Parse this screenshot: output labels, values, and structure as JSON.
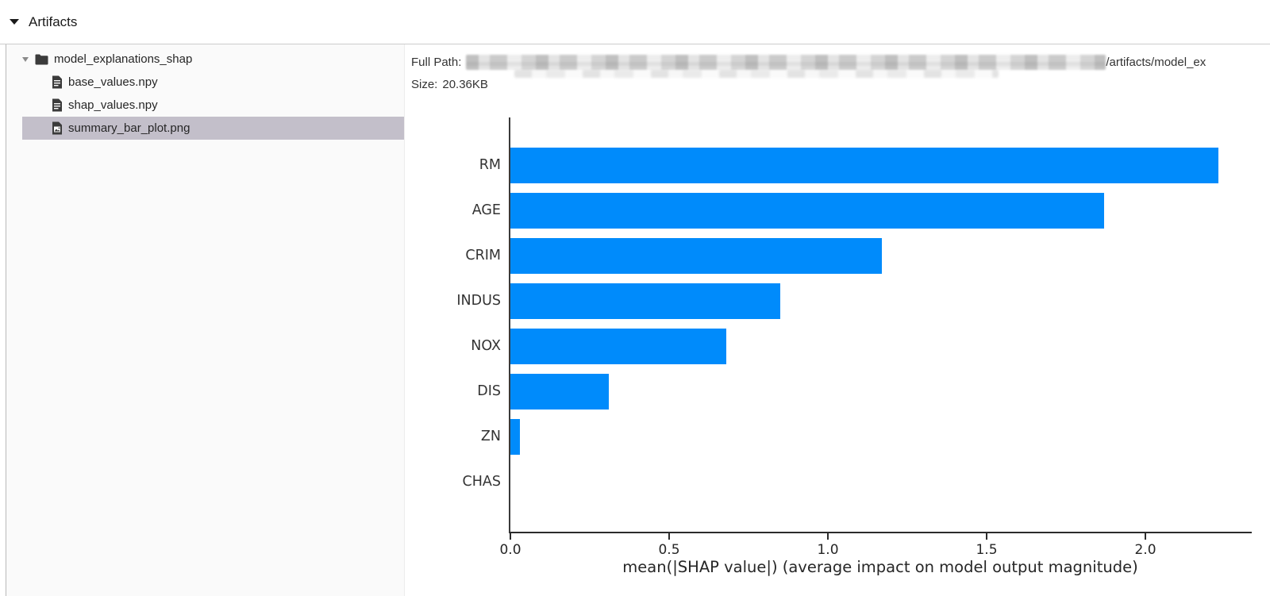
{
  "header": {
    "title": "Artifacts"
  },
  "file_tree": {
    "folder": {
      "name": "model_explanations_shap",
      "icon": "folder-icon",
      "expanded": true
    },
    "files": [
      {
        "name": "base_values.npy",
        "icon": "file-text-icon",
        "selected": false
      },
      {
        "name": "shap_values.npy",
        "icon": "file-text-icon",
        "selected": false
      },
      {
        "name": "summary_bar_plot.png",
        "icon": "file-image-icon",
        "selected": true
      }
    ],
    "selected_bg": "#c3bfca"
  },
  "details": {
    "full_path_label": "Full Path:",
    "full_path_redacted": true,
    "full_path_visible_tail": "/artifacts/model_ex",
    "size_label": "Size:",
    "size_value": "20.36KB"
  },
  "chart_data": {
    "type": "bar",
    "orientation": "horizontal",
    "title": "",
    "categories": [
      "RM",
      "AGE",
      "CRIM",
      "INDUS",
      "NOX",
      "DIS",
      "ZN",
      "CHAS"
    ],
    "values": [
      2.23,
      1.87,
      1.17,
      0.85,
      0.68,
      0.31,
      0.03,
      0.0
    ],
    "xlabel": "mean(|SHAP value|) (average impact on model output magnitude)",
    "ylabel": "",
    "x_ticks": [
      0.0,
      0.5,
      1.0,
      1.5,
      2.0
    ],
    "xlim": [
      0,
      2.34
    ],
    "grid": false,
    "legend": false,
    "bar_color": "#008bfb"
  }
}
